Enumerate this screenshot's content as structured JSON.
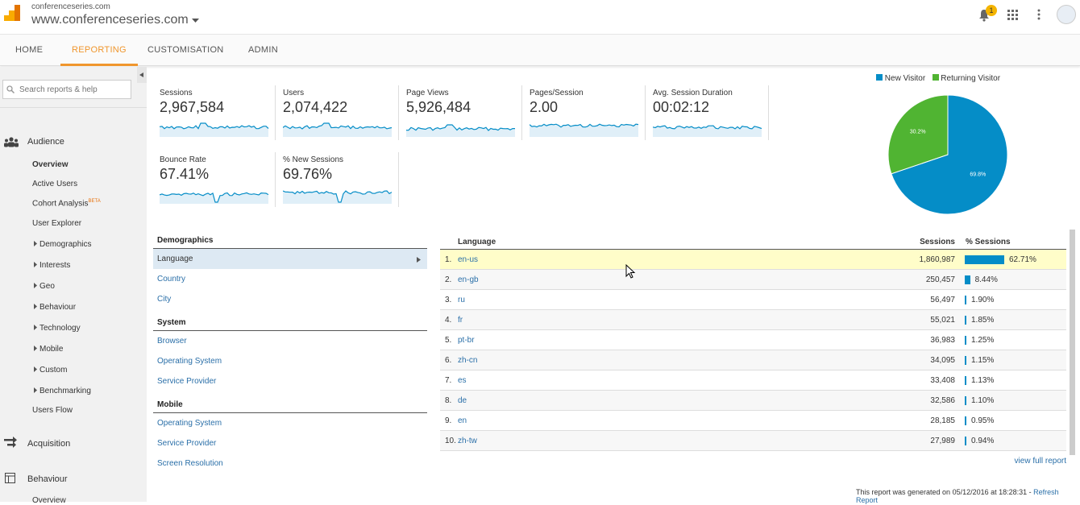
{
  "header": {
    "account": "conferenceseries.com",
    "property": "www.conferenceseries.com",
    "notification_count": "1"
  },
  "nav": {
    "tabs": [
      "HOME",
      "REPORTING",
      "CUSTOMISATION",
      "ADMIN"
    ],
    "active": "REPORTING"
  },
  "sidebar": {
    "search_placeholder": "Search reports & help",
    "audience": "Audience",
    "overview": "Overview",
    "active_users": "Active Users",
    "cohort": "Cohort Analysis",
    "beta": "BETA",
    "user_explorer": "User Explorer",
    "sub": [
      "Demographics",
      "Interests",
      "Geo",
      "Behaviour",
      "Technology",
      "Mobile",
      "Custom",
      "Benchmarking"
    ],
    "users_flow": "Users Flow",
    "acquisition": "Acquisition",
    "behaviour": "Behaviour",
    "behaviour_overview": "Overview"
  },
  "metrics": [
    {
      "label": "Sessions",
      "value": "2,967,584"
    },
    {
      "label": "Users",
      "value": "2,074,422"
    },
    {
      "label": "Page Views",
      "value": "5,926,484"
    },
    {
      "label": "Pages/Session",
      "value": "2.00"
    },
    {
      "label": "Avg. Session Duration",
      "value": "00:02:12"
    },
    {
      "label": "Bounce Rate",
      "value": "67.41%"
    },
    {
      "label": "% New Sessions",
      "value": "69.76%"
    }
  ],
  "chart_data": {
    "type": "pie",
    "legend_position": "top",
    "series": [
      {
        "name": "New Visitor",
        "value": 69.8,
        "label": "69.8%",
        "color": "#058dc7"
      },
      {
        "name": "Returning Visitor",
        "value": 30.2,
        "label": "30.2%",
        "color": "#50b432"
      }
    ]
  },
  "groups": [
    {
      "title": "Demographics",
      "items": [
        "Language",
        "Country",
        "City"
      ]
    },
    {
      "title": "System",
      "items": [
        "Browser",
        "Operating System",
        "Service Provider"
      ]
    },
    {
      "title": "Mobile",
      "items": [
        "Operating System",
        "Service Provider",
        "Screen Resolution"
      ]
    }
  ],
  "table": {
    "headers": {
      "dimension": "Language",
      "sessions": "Sessions",
      "pct": "% Sessions"
    },
    "rows": [
      {
        "rank": "1.",
        "lang": "en-us",
        "sessions": "1,860,987",
        "pct": "62.71%",
        "v": 62.71
      },
      {
        "rank": "2.",
        "lang": "en-gb",
        "sessions": "250,457",
        "pct": "8.44%",
        "v": 8.44
      },
      {
        "rank": "3.",
        "lang": "ru",
        "sessions": "56,497",
        "pct": "1.90%",
        "v": 1.9
      },
      {
        "rank": "4.",
        "lang": "fr",
        "sessions": "55,021",
        "pct": "1.85%",
        "v": 1.85
      },
      {
        "rank": "5.",
        "lang": "pt-br",
        "sessions": "36,983",
        "pct": "1.25%",
        "v": 1.25
      },
      {
        "rank": "6.",
        "lang": "zh-cn",
        "sessions": "34,095",
        "pct": "1.15%",
        "v": 1.15
      },
      {
        "rank": "7.",
        "lang": "es",
        "sessions": "33,408",
        "pct": "1.13%",
        "v": 1.13
      },
      {
        "rank": "8.",
        "lang": "de",
        "sessions": "32,586",
        "pct": "1.10%",
        "v": 1.1
      },
      {
        "rank": "9.",
        "lang": "en",
        "sessions": "28,185",
        "pct": "0.95%",
        "v": 0.95
      },
      {
        "rank": "10.",
        "lang": "zh-tw",
        "sessions": "27,989",
        "pct": "0.94%",
        "v": 0.94
      }
    ],
    "view_full": "view full report"
  },
  "footer": {
    "generated": "This report was generated on 05/12/2016 at 18:28:31 - ",
    "refresh": "Refresh Report"
  }
}
